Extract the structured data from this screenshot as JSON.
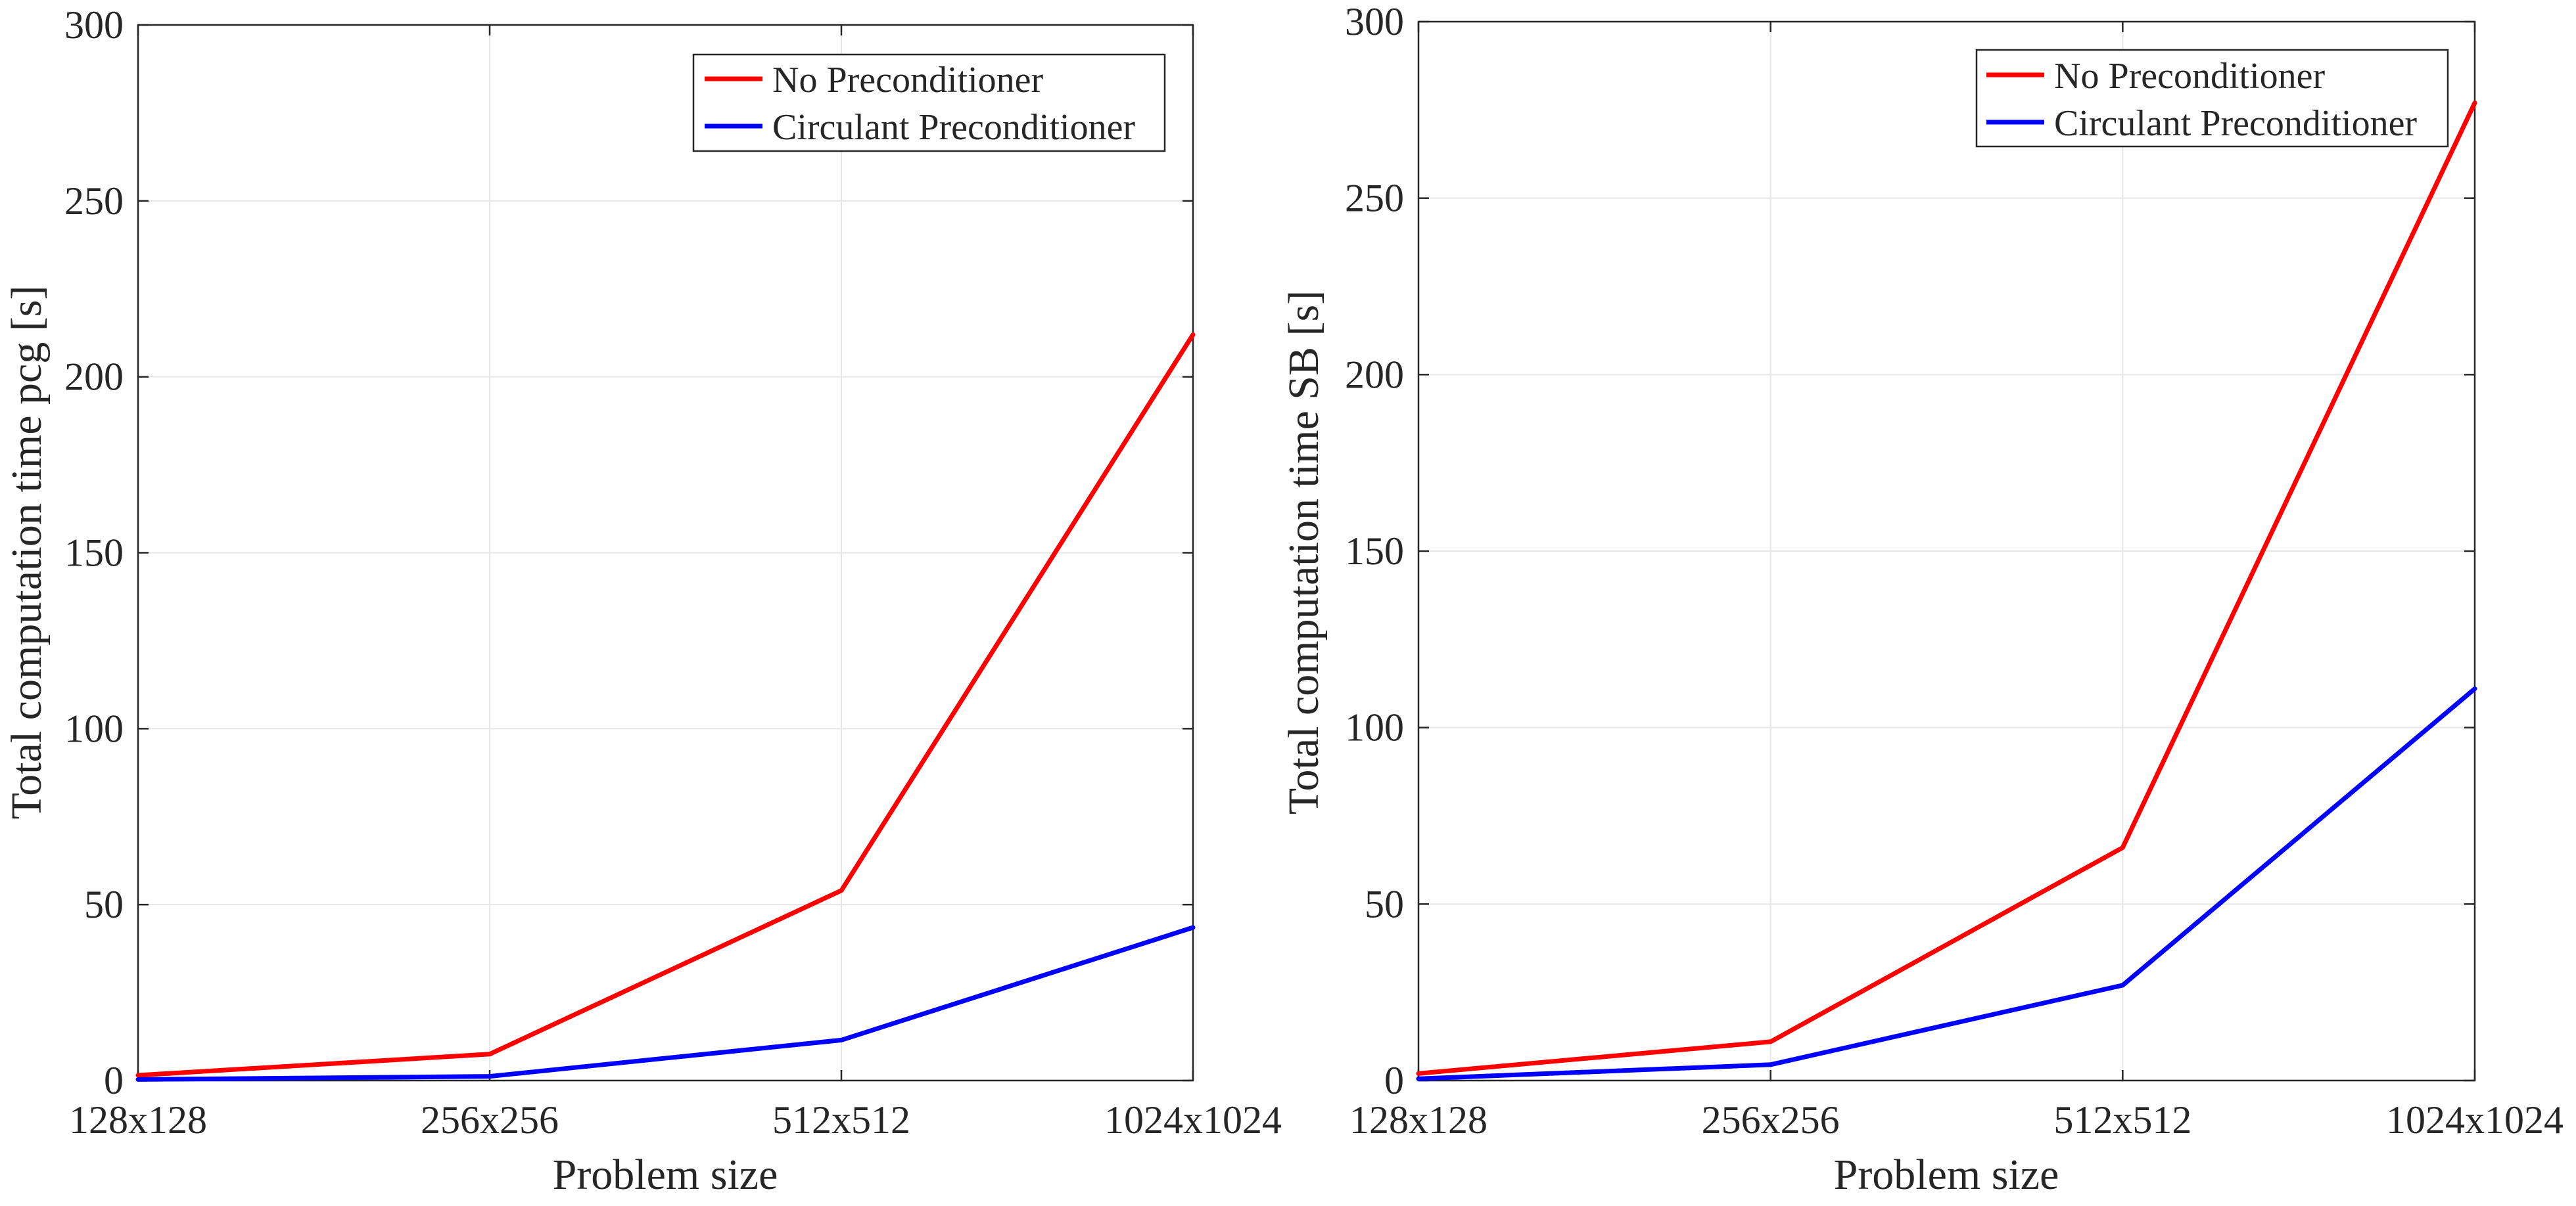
{
  "chart_data": [
    {
      "type": "line",
      "title": "",
      "xlabel": "Problem size",
      "ylabel": "Total computation time pcg [s]",
      "categories": [
        "128x128",
        "256x256",
        "512x512",
        "1024x1024"
      ],
      "ylim": [
        0,
        300
      ],
      "yticks": [
        0,
        50,
        100,
        150,
        200,
        250,
        300
      ],
      "grid": true,
      "legend_position": "top-right",
      "series": [
        {
          "name": "No Preconditioner",
          "color": "#ff0000",
          "values": [
            1.5,
            7.5,
            54,
            212
          ]
        },
        {
          "name": "Circulant Preconditioner",
          "color": "#0000ff",
          "values": [
            0.3,
            1.2,
            11.5,
            43.5
          ]
        }
      ]
    },
    {
      "type": "line",
      "title": "",
      "xlabel": "Problem size",
      "ylabel": "Total computation time SB [s]",
      "categories": [
        "128x128",
        "256x256",
        "512x512",
        "1024x1024"
      ],
      "ylim": [
        0,
        300
      ],
      "yticks": [
        0,
        50,
        100,
        150,
        200,
        250,
        300
      ],
      "grid": true,
      "legend_position": "top-right",
      "series": [
        {
          "name": "No Preconditioner",
          "color": "#ff0000",
          "values": [
            2,
            11,
            66,
            277
          ]
        },
        {
          "name": "Circulant Preconditioner",
          "color": "#0000ff",
          "values": [
            0.5,
            4.5,
            27,
            111
          ]
        }
      ]
    }
  ]
}
